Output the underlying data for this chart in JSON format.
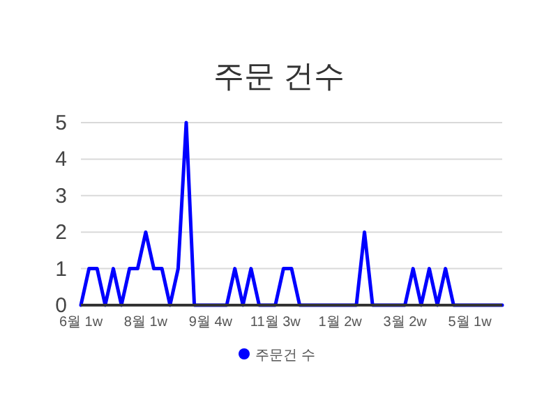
{
  "chart_data": {
    "type": "line",
    "title": "주문 건수",
    "categories": [
      "6월 1w",
      null,
      null,
      null,
      null,
      null,
      null,
      null,
      "8월 1w",
      null,
      null,
      null,
      null,
      null,
      null,
      null,
      "9월 4w",
      null,
      null,
      null,
      null,
      null,
      null,
      null,
      "11월 3w",
      null,
      null,
      null,
      null,
      null,
      null,
      null,
      "1월 2w",
      null,
      null,
      null,
      null,
      null,
      null,
      null,
      "3월 2w",
      null,
      null,
      null,
      null,
      null,
      null,
      null,
      "5월 1w",
      null,
      null,
      null,
      null
    ],
    "series": [
      {
        "name": "주문건 수",
        "color": "#0000ff",
        "values": [
          0,
          1,
          1,
          0,
          1,
          0,
          1,
          1,
          2,
          1,
          1,
          0,
          1,
          5,
          0,
          0,
          0,
          0,
          0,
          1,
          0,
          1,
          0,
          0,
          0,
          1,
          1,
          0,
          0,
          0,
          0,
          0,
          0,
          0,
          0,
          2,
          0,
          0,
          0,
          0,
          0,
          1,
          0,
          1,
          0,
          1,
          0,
          0,
          0,
          0,
          0,
          0,
          0
        ]
      }
    ],
    "ylim": [
      0,
      5
    ],
    "yticks": [
      0,
      1,
      2,
      3,
      4,
      5
    ],
    "grid": "y",
    "legend": "bottom",
    "marker": "none",
    "line_style": "solid"
  }
}
